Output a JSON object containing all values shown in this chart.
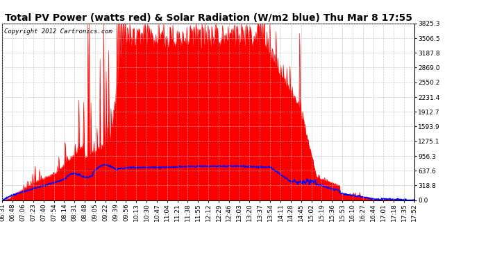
{
  "title": "Total PV Power (watts red) & Solar Radiation (W/m2 blue) Thu Mar 8 17:55",
  "copyright": "Copyright 2012 Cartronics.com",
  "y_max": 3825.3,
  "y_ticks": [
    0.0,
    318.8,
    637.6,
    956.3,
    1275.1,
    1593.9,
    1912.7,
    2231.4,
    2550.2,
    2869.0,
    3187.8,
    3506.5,
    3825.3
  ],
  "x_labels": [
    "06:31",
    "06:48",
    "07:06",
    "07:23",
    "07:40",
    "07:54",
    "08:14",
    "08:31",
    "08:48",
    "09:05",
    "09:22",
    "09:39",
    "09:56",
    "10:13",
    "10:30",
    "10:47",
    "11:04",
    "11:21",
    "11:38",
    "11:55",
    "12:12",
    "12:29",
    "12:46",
    "13:03",
    "13:20",
    "13:37",
    "13:54",
    "14:11",
    "14:28",
    "14:45",
    "15:02",
    "15:19",
    "15:36",
    "15:53",
    "16:10",
    "16:27",
    "16:44",
    "17:01",
    "17:18",
    "17:35",
    "17:52"
  ],
  "bg_color": "#ffffff",
  "plot_bg": "#ffffff",
  "red_color": "red",
  "blue_color": "blue",
  "title_fontsize": 10,
  "copyright_fontsize": 6.5,
  "tick_fontsize": 6.5
}
